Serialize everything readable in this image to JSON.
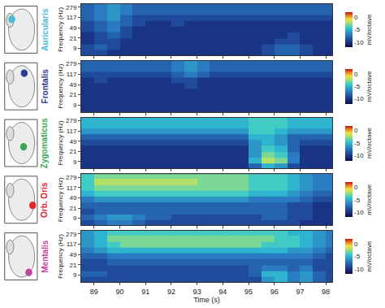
{
  "chart_data": [
    {
      "type": "heatmap",
      "title": "Auricularis",
      "color": "#49bcd4",
      "x": [
        88.75,
        89.25,
        89.75,
        90.25,
        90.75,
        91.25,
        91.75,
        92.25,
        92.75,
        93.25,
        93.75,
        94.25,
        94.75,
        95.25,
        95.75,
        96.25,
        96.75,
        97.25,
        97.75,
        98.25
      ],
      "y": [
        6,
        10,
        16,
        26,
        43,
        70,
        115,
        190,
        310
      ],
      "z": [
        [
          -9,
          -9,
          -10,
          -10,
          -10,
          -10,
          -10,
          -10,
          -10,
          -10,
          -10,
          -10,
          -10,
          -10,
          -9,
          -8,
          -8,
          -9,
          -10,
          -10
        ],
        [
          -9,
          -8,
          -9,
          -10,
          -10,
          -10,
          -10,
          -10,
          -10,
          -10,
          -10,
          -10,
          -10,
          -10,
          -9,
          -8,
          -8,
          -9,
          -10,
          -10
        ],
        [
          -10,
          -9,
          -9,
          -10,
          -10,
          -10,
          -10,
          -10,
          -10,
          -10,
          -10,
          -10,
          -10,
          -10,
          -10,
          -9,
          -9,
          -10,
          -10,
          -10
        ],
        [
          -10,
          -9,
          -8,
          -9,
          -10,
          -10,
          -10,
          -10,
          -10,
          -10,
          -10,
          -10,
          -10,
          -10,
          -10,
          -10,
          -9,
          -10,
          -10,
          -10
        ],
        [
          -9,
          -8,
          -7,
          -9,
          -10,
          -10,
          -10,
          -10,
          -10,
          -10,
          -10,
          -10,
          -10,
          -10,
          -10,
          -10,
          -10,
          -10,
          -10,
          -10
        ],
        [
          -9,
          -8,
          -7,
          -8,
          -9,
          -10,
          -10,
          -9,
          -10,
          -10,
          -10,
          -10,
          -10,
          -10,
          -10,
          -10,
          -10,
          -10,
          -10,
          -10
        ],
        [
          -8,
          -7,
          -6,
          -8,
          -9,
          -9,
          -9,
          -9,
          -9,
          -9,
          -9,
          -9,
          -9,
          -9,
          -9,
          -9,
          -9,
          -9,
          -9,
          -9
        ],
        [
          -8,
          -7,
          -6,
          -7,
          -8,
          -8,
          -8,
          -8,
          -8,
          -8,
          -8,
          -8,
          -8,
          -8,
          -8,
          -8,
          -8,
          -8,
          -8,
          -8
        ],
        [
          -8,
          -7,
          -6,
          -7,
          -8,
          -8,
          -8,
          -8,
          -8,
          -8,
          -8,
          -8,
          -8,
          -8,
          -8,
          -8,
          -8,
          -8,
          -8,
          -8
        ]
      ],
      "xlim": [
        88.5,
        98.25
      ],
      "xticks": [
        89,
        90,
        91,
        92,
        93,
        94,
        95,
        96,
        97,
        98
      ],
      "ylim": [
        5,
        360
      ],
      "yticks": [
        9,
        21,
        49,
        117,
        279
      ],
      "log": "y",
      "y_label": "Frequency (Hz)",
      "tick_labels": "y",
      "colorbar": {
        "title": "mV/octave",
        "range": [
          -12,
          2
        ],
        "ticks": [
          0,
          -5,
          -10
        ]
      }
    },
    {
      "type": "heatmap",
      "title": "Frontalis",
      "color": "#2e3a92",
      "x": [
        88.75,
        89.25,
        89.75,
        90.25,
        90.75,
        91.25,
        91.75,
        92.25,
        92.75,
        93.25,
        93.75,
        94.25,
        94.75,
        95.25,
        95.75,
        96.25,
        96.75,
        97.25,
        97.75,
        98.25
      ],
      "y": [
        6,
        10,
        16,
        26,
        43,
        70,
        115,
        190,
        310
      ],
      "z": [
        [
          -10,
          -10,
          -10,
          -10,
          -10,
          -10,
          -10,
          -10,
          -10,
          -10,
          -10,
          -10,
          -10,
          -10,
          -10,
          -10,
          -10,
          -10,
          -10,
          -10
        ],
        [
          -10,
          -10,
          -10,
          -10,
          -10,
          -10,
          -10,
          -10,
          -10,
          -10,
          -10,
          -10,
          -10,
          -10,
          -10,
          -10,
          -10,
          -10,
          -10,
          -10
        ],
        [
          -10,
          -10,
          -10,
          -10,
          -10,
          -10,
          -10,
          -10,
          -10,
          -10,
          -10,
          -10,
          -10,
          -10,
          -10,
          -10,
          -10,
          -10,
          -10,
          -10
        ],
        [
          -10,
          -10,
          -10,
          -10,
          -10,
          -10,
          -10,
          -10,
          -10,
          -10,
          -10,
          -10,
          -10,
          -10,
          -10,
          -10,
          -10,
          -10,
          -10,
          -10
        ],
        [
          -10,
          -10,
          -10,
          -10,
          -10,
          -10,
          -10,
          -10,
          -9,
          -10,
          -10,
          -10,
          -10,
          -10,
          -10,
          -10,
          -10,
          -10,
          -10,
          -10
        ],
        [
          -10,
          -9,
          -10,
          -10,
          -10,
          -10,
          -10,
          -9,
          -9,
          -10,
          -10,
          -10,
          -10,
          -10,
          -10,
          -10,
          -10,
          -10,
          -10,
          -10
        ],
        [
          -9,
          -9,
          -9,
          -9,
          -9,
          -9,
          -9,
          -8,
          -7,
          -8,
          -9,
          -9,
          -9,
          -9,
          -9,
          -9,
          -9,
          -9,
          -9,
          -9
        ],
        [
          -8,
          -8,
          -8,
          -8,
          -8,
          -8,
          -8,
          -7,
          -6,
          -7,
          -8,
          -8,
          -8,
          -8,
          -8,
          -8,
          -8,
          -8,
          -8,
          -8
        ],
        [
          -8,
          -8,
          -8,
          -8,
          -8,
          -8,
          -8,
          -7,
          -6,
          -7,
          -8,
          -8,
          -8,
          -8,
          -8,
          -8,
          -8,
          -8,
          -8,
          -8
        ]
      ],
      "xlim": [
        88.5,
        98.25
      ],
      "xticks": [
        89,
        90,
        91,
        92,
        93,
        94,
        95,
        96,
        97,
        98
      ],
      "ylim": [
        5,
        360
      ],
      "yticks": [
        9,
        21,
        49,
        117,
        279
      ],
      "log": "y",
      "y_label": "Frequency (Hz)",
      "tick_labels": "y",
      "colorbar": {
        "title": "mV/octave",
        "range": [
          -12,
          2
        ],
        "ticks": [
          0,
          -5,
          -10
        ]
      }
    },
    {
      "type": "heatmap",
      "title": "Zygomaticus",
      "color": "#3aa655",
      "x": [
        88.75,
        89.25,
        89.75,
        90.25,
        90.75,
        91.25,
        91.75,
        92.25,
        92.75,
        93.25,
        93.75,
        94.25,
        94.75,
        95.25,
        95.75,
        96.25,
        96.75,
        97.25,
        97.75,
        98.25
      ],
      "y": [
        6,
        10,
        16,
        26,
        43,
        70,
        115,
        190,
        310
      ],
      "z": [
        [
          -10,
          -10,
          -10,
          -10,
          -10,
          -10,
          -10,
          -10,
          -10,
          -10,
          -10,
          -10,
          -10,
          -8,
          -5,
          -6,
          -9,
          -10,
          -10,
          -10
        ],
        [
          -10,
          -10,
          -10,
          -10,
          -10,
          -10,
          -10,
          -10,
          -10,
          -10,
          -10,
          -10,
          -10,
          -5,
          -2,
          -3,
          -7,
          -10,
          -10,
          -10
        ],
        [
          -10,
          -10,
          -10,
          -10,
          -10,
          -10,
          -10,
          -10,
          -10,
          -10,
          -10,
          -10,
          -10,
          -6,
          -3,
          -4,
          -7,
          -10,
          -10,
          -10
        ],
        [
          -10,
          -10,
          -10,
          -10,
          -10,
          -10,
          -10,
          -10,
          -10,
          -10,
          -10,
          -10,
          -10,
          -6,
          -4,
          -5,
          -8,
          -10,
          -10,
          -10
        ],
        [
          -9,
          -9,
          -9,
          -9,
          -9,
          -9,
          -9,
          -9,
          -9,
          -9,
          -9,
          -9,
          -9,
          -6,
          -5,
          -6,
          -8,
          -9,
          -9,
          -9
        ],
        [
          -8,
          -8,
          -8,
          -8,
          -8,
          -8,
          -8,
          -8,
          -8,
          -8,
          -8,
          -8,
          -8,
          -5,
          -5,
          -6,
          -8,
          -8,
          -8,
          -8
        ],
        [
          -6,
          -6,
          -6,
          -6,
          -6,
          -6,
          -6,
          -6,
          -6,
          -6,
          -6,
          -6,
          -6,
          -4,
          -4,
          -5,
          -6,
          -6,
          -6,
          -6
        ],
        [
          -5,
          -5,
          -5,
          -5,
          -5,
          -5,
          -5,
          -5,
          -5,
          -5,
          -5,
          -5,
          -5,
          -4,
          -4,
          -4,
          -5,
          -5,
          -5,
          -5
        ],
        [
          -5,
          -5,
          -5,
          -5,
          -5,
          -5,
          -5,
          -5,
          -5,
          -5,
          -5,
          -5,
          -5,
          -4,
          -4,
          -4,
          -5,
          -5,
          -5,
          -5
        ]
      ],
      "xlim": [
        88.5,
        98.25
      ],
      "xticks": [
        89,
        90,
        91,
        92,
        93,
        94,
        95,
        96,
        97,
        98
      ],
      "ylim": [
        5,
        360
      ],
      "yticks": [
        9,
        21,
        49,
        117,
        279
      ],
      "log": "y",
      "y_label": "Frequency (Hz)",
      "tick_labels": "y",
      "colorbar": {
        "title": "mV/octave",
        "range": [
          -12,
          2
        ],
        "ticks": [
          0,
          -5,
          -10
        ]
      }
    },
    {
      "type": "heatmap",
      "title": "Orb. Oris",
      "color": "#e0262b",
      "x": [
        88.75,
        89.25,
        89.75,
        90.25,
        90.75,
        91.25,
        91.75,
        92.25,
        92.75,
        93.25,
        93.75,
        94.25,
        94.75,
        95.25,
        95.75,
        96.25,
        96.75,
        97.25,
        97.75,
        98.25
      ],
      "y": [
        6,
        10,
        16,
        26,
        43,
        70,
        115,
        190,
        310
      ],
      "z": [
        [
          -9,
          -8,
          -7,
          -7,
          -8,
          -9,
          -9,
          -9,
          -9,
          -9,
          -9,
          -9,
          -9,
          -9,
          -9,
          -9,
          -9,
          -10,
          -10,
          -10
        ],
        [
          -8,
          -7,
          -6,
          -6,
          -7,
          -8,
          -8,
          -9,
          -9,
          -9,
          -9,
          -9,
          -9,
          -9,
          -8,
          -8,
          -9,
          -9,
          -10,
          -10
        ],
        [
          -9,
          -8,
          -8,
          -8,
          -8,
          -8,
          -8,
          -8,
          -8,
          -8,
          -8,
          -8,
          -8,
          -8,
          -8,
          -8,
          -9,
          -9,
          -10,
          -10
        ],
        [
          -8,
          -8,
          -8,
          -8,
          -8,
          -8,
          -8,
          -8,
          -8,
          -8,
          -8,
          -8,
          -8,
          -8,
          -8,
          -8,
          -9,
          -9,
          -10,
          -10
        ],
        [
          -7,
          -6,
          -6,
          -6,
          -6,
          -6,
          -6,
          -6,
          -6,
          -6,
          -6,
          -6,
          -6,
          -7,
          -7,
          -7,
          -7,
          -8,
          -9,
          -9
        ],
        [
          -5,
          -4,
          -4,
          -4,
          -4,
          -4,
          -4,
          -4,
          -4,
          -4,
          -4,
          -4,
          -4,
          -5,
          -5,
          -5,
          -6,
          -7,
          -8,
          -8
        ],
        [
          -4,
          -3,
          -3,
          -3,
          -3,
          -3,
          -3,
          -3,
          -3,
          -3,
          -3,
          -3,
          -3,
          -4,
          -4,
          -4,
          -5,
          -6,
          -7,
          -7
        ],
        [
          -4,
          -2,
          -2,
          -2,
          -2,
          -2,
          -2,
          -2,
          -2,
          -3,
          -3,
          -3,
          -3,
          -4,
          -4,
          -4,
          -5,
          -6,
          -7,
          -7
        ],
        [
          -4,
          -3,
          -3,
          -3,
          -3,
          -3,
          -3,
          -3,
          -3,
          -3,
          -3,
          -3,
          -3,
          -4,
          -4,
          -4,
          -5,
          -6,
          -7,
          -7
        ]
      ],
      "xlim": [
        88.5,
        98.25
      ],
      "xticks": [
        89,
        90,
        91,
        92,
        93,
        94,
        95,
        96,
        97,
        98
      ],
      "ylim": [
        5,
        360
      ],
      "yticks": [
        9,
        21,
        49,
        117,
        279
      ],
      "log": "y",
      "y_label": "Frequency (Hz)",
      "tick_labels": "y",
      "colorbar": {
        "title": "mV/octave",
        "range": [
          -12,
          2
        ],
        "ticks": [
          0,
          -5,
          -10
        ]
      }
    },
    {
      "type": "heatmap",
      "title": "Mentalis",
      "color": "#c2449e",
      "x": [
        88.75,
        89.25,
        89.75,
        90.25,
        90.75,
        91.25,
        91.75,
        92.25,
        92.75,
        93.25,
        93.75,
        94.25,
        94.75,
        95.25,
        95.75,
        96.25,
        96.75,
        97.25,
        97.75,
        98.25
      ],
      "y": [
        6,
        10,
        16,
        26,
        43,
        70,
        115,
        190,
        310
      ],
      "z": [
        [
          -9,
          -9,
          -9,
          -9,
          -9,
          -9,
          -9,
          -9,
          -9,
          -9,
          -9,
          -9,
          -9,
          -9,
          -6,
          -5,
          -7,
          -6,
          -8,
          -9
        ],
        [
          -8,
          -8,
          -9,
          -9,
          -9,
          -9,
          -9,
          -9,
          -9,
          -9,
          -9,
          -9,
          -9,
          -8,
          -5,
          -5,
          -7,
          -6,
          -8,
          -9
        ],
        [
          -9,
          -9,
          -9,
          -9,
          -9,
          -9,
          -9,
          -9,
          -9,
          -9,
          -9,
          -9,
          -9,
          -8,
          -7,
          -7,
          -8,
          -7,
          -9,
          -9
        ],
        [
          -9,
          -9,
          -8,
          -8,
          -8,
          -8,
          -8,
          -8,
          -8,
          -8,
          -8,
          -8,
          -8,
          -8,
          -8,
          -8,
          -8,
          -8,
          -9,
          -9
        ],
        [
          -8,
          -8,
          -7,
          -7,
          -7,
          -7,
          -7,
          -7,
          -7,
          -7,
          -7,
          -7,
          -7,
          -7,
          -7,
          -7,
          -7,
          -7,
          -8,
          -9
        ],
        [
          -7,
          -6,
          -5,
          -5,
          -5,
          -5,
          -5,
          -5,
          -5,
          -5,
          -5,
          -5,
          -5,
          -5,
          -5,
          -5,
          -6,
          -6,
          -7,
          -8
        ],
        [
          -6,
          -5,
          -4,
          -3,
          -3,
          -3,
          -3,
          -3,
          -3,
          -3,
          -3,
          -3,
          -3,
          -3,
          -4,
          -4,
          -4,
          -5,
          -6,
          -7
        ],
        [
          -6,
          -5,
          -3,
          -3,
          -3,
          -3,
          -3,
          -3,
          -3,
          -3,
          -3,
          -3,
          -3,
          -3,
          -3,
          -4,
          -4,
          -5,
          -6,
          -7
        ],
        [
          -6,
          -5,
          -4,
          -4,
          -4,
          -4,
          -4,
          -4,
          -4,
          -4,
          -4,
          -4,
          -4,
          -4,
          -4,
          -4,
          -5,
          -5,
          -6,
          -7
        ]
      ],
      "xlim": [
        88.5,
        98.25
      ],
      "xticks": [
        89,
        90,
        91,
        92,
        93,
        94,
        95,
        96,
        97,
        98
      ],
      "ylim": [
        5,
        360
      ],
      "yticks": [
        9,
        21,
        49,
        117,
        279
      ],
      "log": "y",
      "x_label": "Time (s)",
      "y_label": "Frequency (Hz)",
      "colorbar": {
        "title": "mV/octave",
        "range": [
          -12,
          2
        ],
        "ticks": [
          0,
          -5,
          -10
        ]
      }
    }
  ]
}
